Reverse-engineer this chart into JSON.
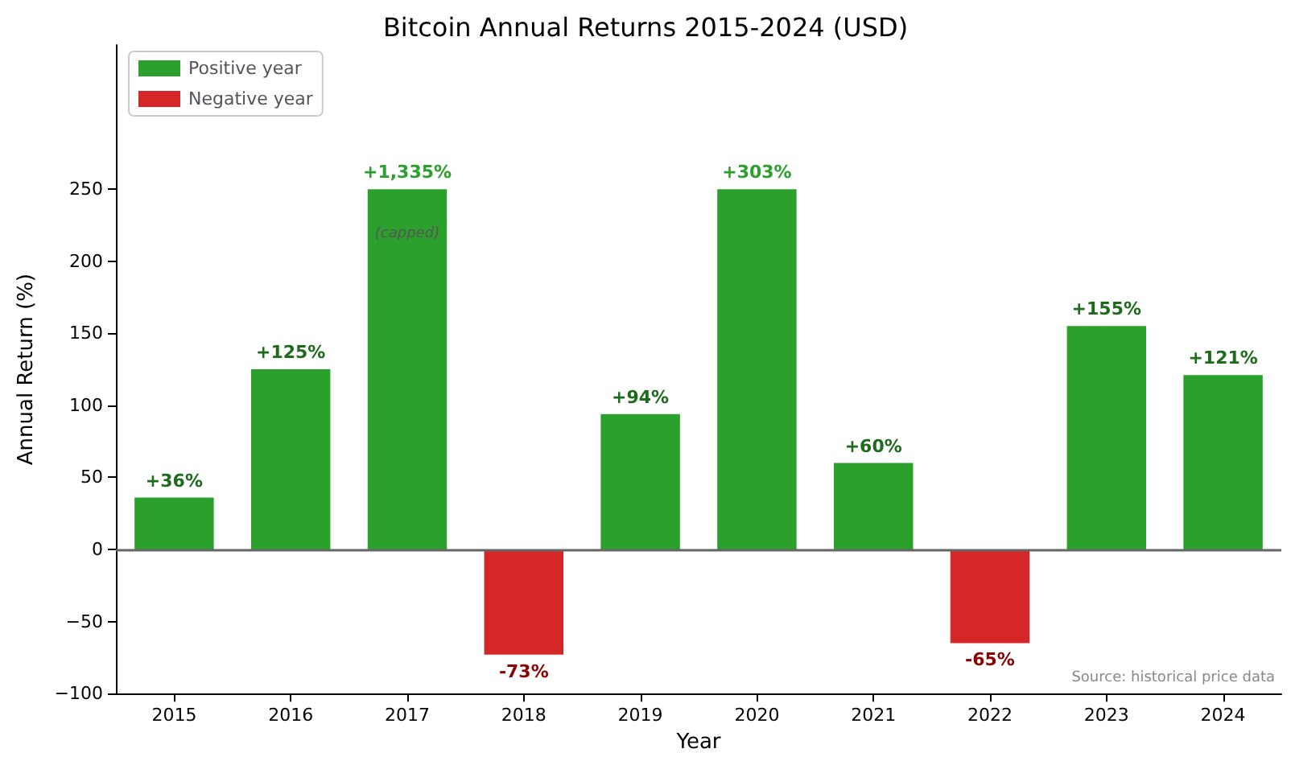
{
  "chart_data": {
    "type": "bar",
    "title": "Bitcoin Annual Returns 2015-2024 (USD)",
    "xlabel": "Year",
    "ylabel": "Annual Return (%)",
    "categories": [
      "2015",
      "2016",
      "2017",
      "2018",
      "2019",
      "2020",
      "2021",
      "2022",
      "2023",
      "2024"
    ],
    "series": [
      {
        "name": "Positive year",
        "color": "#2ca02c",
        "values": [
          36,
          125,
          250,
          null,
          94,
          250,
          60,
          null,
          155,
          121
        ],
        "value_labels": [
          "+36%",
          "+125%",
          null,
          null,
          "+94%",
          null,
          "+60%",
          null,
          "+155%",
          "+121%"
        ]
      },
      {
        "name": "Negative year",
        "color": "#d62728",
        "values": [
          null,
          null,
          null,
          -73,
          null,
          null,
          null,
          -65,
          null,
          null
        ],
        "value_labels": [
          null,
          null,
          null,
          "-73%",
          null,
          null,
          null,
          "-65%",
          null,
          null
        ]
      }
    ],
    "ylim": [
      -100,
      350
    ],
    "yticks": [
      -100,
      -50,
      0,
      50,
      100,
      150,
      200,
      250
    ],
    "ref_lines": [
      {
        "axis": "y",
        "value": 0,
        "color": "#666666"
      }
    ],
    "annotations": [
      {
        "text": "+1,335%",
        "x": "2017",
        "y": 250
      },
      {
        "text": "(capped)",
        "x": "2017",
        "y": 250
      },
      {
        "text": "+303%",
        "x": "2020",
        "y": 250
      },
      "Source: historical price data"
    ],
    "legend": "top left",
    "grid": false
  }
}
